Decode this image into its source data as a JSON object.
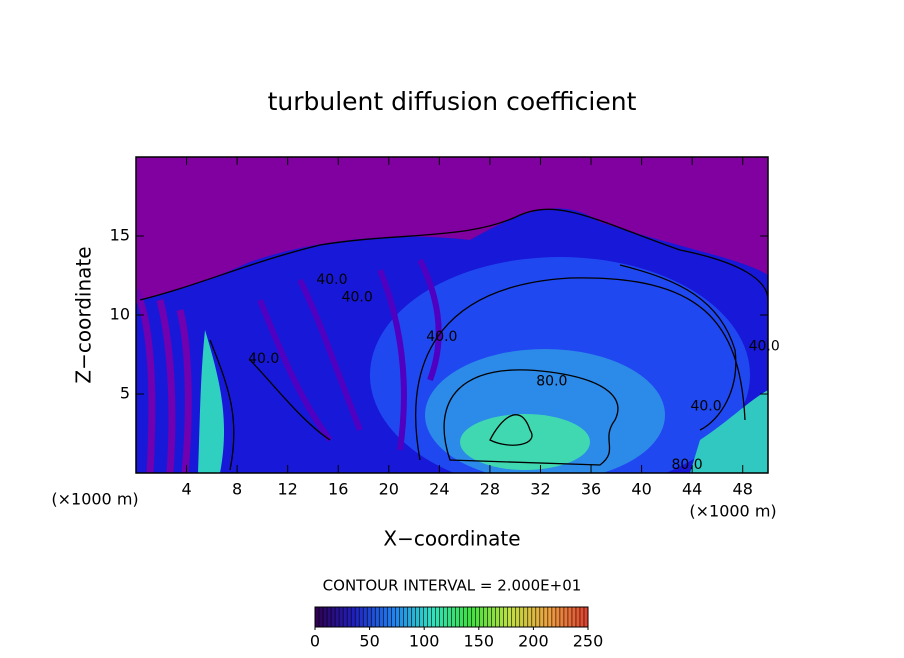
{
  "chart_data": {
    "type": "contour",
    "title": "turbulent diffusion coefficient",
    "xlabel": "X−coordinate",
    "ylabel": "Z−coordinate",
    "x_unit": "(×1000 m)",
    "y_unit": "(×1000 m)",
    "xlim": [
      0,
      50
    ],
    "ylim": [
      0,
      20
    ],
    "xticks": [
      4,
      8,
      12,
      16,
      20,
      24,
      28,
      32,
      36,
      40,
      44,
      48
    ],
    "yticks": [
      5,
      10,
      15
    ],
    "background_color": "#8000a0",
    "contour_labels": [
      {
        "x": 15.5,
        "y": 12.2,
        "label": "40.0"
      },
      {
        "x": 17.5,
        "y": 11.1,
        "label": "40.0"
      },
      {
        "x": 10.1,
        "y": 7.2,
        "label": "40.0"
      },
      {
        "x": 24.2,
        "y": 8.6,
        "label": "40.0"
      },
      {
        "x": 32.9,
        "y": 5.8,
        "label": "80.0"
      },
      {
        "x": 43.6,
        "y": 0.5,
        "label": "80.0"
      },
      {
        "x": 45.1,
        "y": 4.2,
        "label": "40.0"
      },
      {
        "x": 49.7,
        "y": 8.0,
        "label": "40.0"
      }
    ],
    "contour_interval_text": "CONTOUR INTERVAL = 2.000E+01",
    "colorbar": {
      "lim": [
        0,
        250
      ],
      "ticks": [
        0,
        50,
        100,
        150,
        200,
        250
      ],
      "colors": [
        "#300050",
        "#2020c0",
        "#2080f0",
        "#30e0c0",
        "#40e040",
        "#c0e040",
        "#f0a040",
        "#e04030"
      ]
    }
  }
}
